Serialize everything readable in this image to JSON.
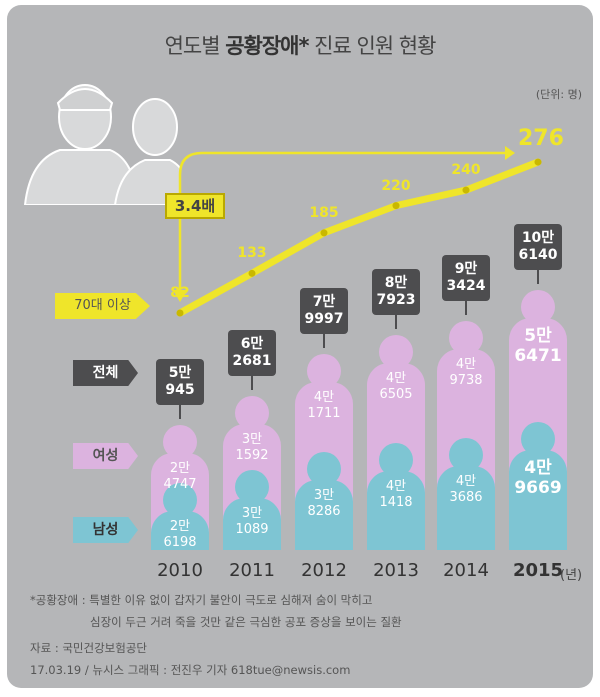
{
  "title_pre": "연도별 ",
  "title_bold": "공황장애*",
  "title_post": " 진료 인원 현황",
  "unit": "(단위: 명)",
  "multiplier_label": "3.4배",
  "row_labels": {
    "elderly": "70대 이상",
    "total": "전체",
    "female": "여성",
    "male": "남성"
  },
  "year_suffix": "(년)",
  "footnote_1": "*공황장애 : 특별한 이유 없이 갑자기 불안이 극도로 심해져 숨이 막히고",
  "footnote_2": "심장이 두근 거려 죽을 것만  같은 극심한 공포 증상을 보이는 질환",
  "source": "자료 : 국민건강보험공단",
  "credit": "17.03.19 / 뉴시스 그래픽 : 전진우 기자 618tue@newsis.com",
  "colors": {
    "female": "#dcb3df",
    "male": "#7ec5d3",
    "line": "#efe52a",
    "box": "#4d4d4f"
  },
  "chart_data": {
    "type": "bar",
    "title": "연도별 공황장애* 진료 인원 현황",
    "categories": [
      "2010",
      "2011",
      "2012",
      "2013",
      "2014",
      "2015"
    ],
    "series": [
      {
        "name": "남성",
        "values": [
          26198,
          31089,
          38286,
          41418,
          43686,
          49669
        ],
        "labels": [
          [
            "2만",
            "6198"
          ],
          [
            "3만",
            "1089"
          ],
          [
            "3만",
            "8286"
          ],
          [
            "4만",
            "1418"
          ],
          [
            "4만",
            "3686"
          ],
          [
            "4만",
            "9669"
          ]
        ]
      },
      {
        "name": "여성",
        "values": [
          24747,
          31592,
          41711,
          46505,
          49738,
          56471
        ],
        "labels": [
          [
            "2만",
            "4747"
          ],
          [
            "3만",
            "1592"
          ],
          [
            "4만",
            "1711"
          ],
          [
            "4만",
            "6505"
          ],
          [
            "4만",
            "9738"
          ],
          [
            "5만",
            "6471"
          ]
        ]
      },
      {
        "name": "전체",
        "values": [
          50945,
          62681,
          79997,
          87923,
          93424,
          106140
        ],
        "labels": [
          [
            "5만",
            "945"
          ],
          [
            "6만",
            "2681"
          ],
          [
            "7만",
            "9997"
          ],
          [
            "8만",
            "7923"
          ],
          [
            "9만",
            "3424"
          ],
          [
            "10만",
            "6140"
          ]
        ]
      },
      {
        "name": "70대 이상",
        "type": "line",
        "values": [
          82,
          133,
          185,
          220,
          240,
          276
        ]
      }
    ]
  }
}
